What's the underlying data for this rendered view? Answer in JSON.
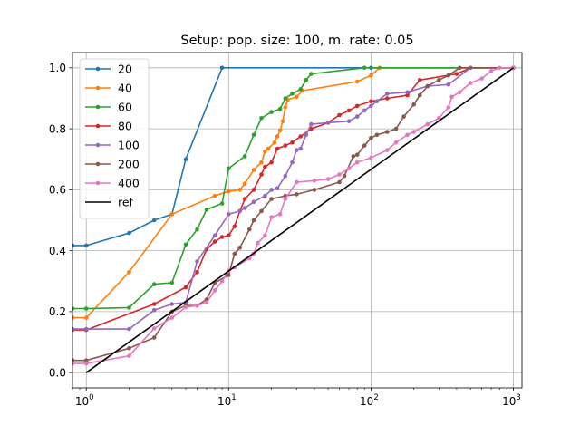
{
  "chart_data": {
    "type": "line",
    "title": "Setup: pop. size: 100, m. rate: 0.05",
    "xlabel": "",
    "ylabel": "",
    "xscale": "log",
    "xlim": [
      0.8,
      1150
    ],
    "ylim": [
      -0.05,
      1.05
    ],
    "grid": true,
    "legend_position": "upper-left",
    "x_ticks": [
      {
        "value": 1,
        "base": "10",
        "exp": "0"
      },
      {
        "value": 10,
        "base": "10",
        "exp": "1"
      },
      {
        "value": 100,
        "base": "10",
        "exp": "2"
      },
      {
        "value": 1000,
        "base": "10",
        "exp": "3"
      }
    ],
    "y_ticks": [
      {
        "value": 0.0,
        "label": "0.0"
      },
      {
        "value": 0.2,
        "label": "0.2"
      },
      {
        "value": 0.4,
        "label": "0.4"
      },
      {
        "value": 0.6,
        "label": "0.6"
      },
      {
        "value": 0.8,
        "label": "0.8"
      },
      {
        "value": 1.0,
        "label": "1.0"
      }
    ],
    "series": [
      {
        "name": "20",
        "color": "#1f77b4",
        "markers": true,
        "points": [
          [
            0.8,
            0.417
          ],
          [
            1,
            0.417
          ],
          [
            2,
            0.458
          ],
          [
            3,
            0.5
          ],
          [
            4,
            0.52
          ],
          [
            5,
            0.7
          ],
          [
            9,
            1.0
          ],
          [
            100,
            1.0
          ],
          [
            1000,
            1.0
          ]
        ]
      },
      {
        "name": "40",
        "color": "#ff7f0e",
        "markers": true,
        "points": [
          [
            0.8,
            0.18
          ],
          [
            1,
            0.18
          ],
          [
            2,
            0.33
          ],
          [
            4,
            0.52
          ],
          [
            8,
            0.58
          ],
          [
            10,
            0.595
          ],
          [
            12,
            0.6
          ],
          [
            13,
            0.62
          ],
          [
            15,
            0.665
          ],
          [
            17,
            0.69
          ],
          [
            18,
            0.725
          ],
          [
            19,
            0.735
          ],
          [
            21,
            0.755
          ],
          [
            22,
            0.775
          ],
          [
            23,
            0.795
          ],
          [
            24,
            0.825
          ],
          [
            25,
            0.87
          ],
          [
            26,
            0.895
          ],
          [
            30,
            0.905
          ],
          [
            33,
            0.925
          ],
          [
            80,
            0.955
          ],
          [
            100,
            0.975
          ],
          [
            115,
            1.0
          ],
          [
            1000,
            1.0
          ]
        ]
      },
      {
        "name": "60",
        "color": "#2ca02c",
        "markers": true,
        "points": [
          [
            0.8,
            0.21
          ],
          [
            1,
            0.21
          ],
          [
            2,
            0.213
          ],
          [
            3,
            0.29
          ],
          [
            4,
            0.295
          ],
          [
            5,
            0.42
          ],
          [
            6,
            0.47
          ],
          [
            7,
            0.535
          ],
          [
            9,
            0.555
          ],
          [
            10,
            0.67
          ],
          [
            13,
            0.71
          ],
          [
            15,
            0.78
          ],
          [
            17,
            0.835
          ],
          [
            20,
            0.855
          ],
          [
            23,
            0.865
          ],
          [
            25,
            0.9
          ],
          [
            28,
            0.915
          ],
          [
            32,
            0.93
          ],
          [
            35,
            0.96
          ],
          [
            38,
            0.98
          ],
          [
            90,
            1.0
          ],
          [
            1000,
            1.0
          ]
        ]
      },
      {
        "name": "80",
        "color": "#d62728",
        "markers": true,
        "points": [
          [
            0.8,
            0.14
          ],
          [
            1,
            0.14
          ],
          [
            3,
            0.225
          ],
          [
            5,
            0.28
          ],
          [
            6,
            0.33
          ],
          [
            7,
            0.405
          ],
          [
            8,
            0.43
          ],
          [
            9,
            0.445
          ],
          [
            10,
            0.45
          ],
          [
            11,
            0.48
          ],
          [
            12,
            0.53
          ],
          [
            13,
            0.57
          ],
          [
            15,
            0.6
          ],
          [
            17,
            0.65
          ],
          [
            18,
            0.675
          ],
          [
            20,
            0.69
          ],
          [
            22,
            0.735
          ],
          [
            25,
            0.745
          ],
          [
            28,
            0.755
          ],
          [
            32,
            0.775
          ],
          [
            38,
            0.8
          ],
          [
            50,
            0.82
          ],
          [
            60,
            0.845
          ],
          [
            70,
            0.86
          ],
          [
            80,
            0.875
          ],
          [
            100,
            0.89
          ],
          [
            130,
            0.9
          ],
          [
            180,
            0.91
          ],
          [
            220,
            0.96
          ],
          [
            400,
            0.98
          ],
          [
            500,
            1.0
          ],
          [
            1000,
            1.0
          ]
        ]
      },
      {
        "name": "100",
        "color": "#9467bd",
        "markers": true,
        "points": [
          [
            0.8,
            0.143
          ],
          [
            1,
            0.143
          ],
          [
            2,
            0.143
          ],
          [
            3,
            0.205
          ],
          [
            4,
            0.225
          ],
          [
            5,
            0.23
          ],
          [
            6,
            0.365
          ],
          [
            8,
            0.45
          ],
          [
            10,
            0.52
          ],
          [
            12,
            0.53
          ],
          [
            13,
            0.54
          ],
          [
            15,
            0.56
          ],
          [
            18,
            0.58
          ],
          [
            20,
            0.6
          ],
          [
            22,
            0.605
          ],
          [
            25,
            0.645
          ],
          [
            28,
            0.69
          ],
          [
            30,
            0.73
          ],
          [
            32,
            0.735
          ],
          [
            35,
            0.78
          ],
          [
            38,
            0.815
          ],
          [
            50,
            0.82
          ],
          [
            70,
            0.825
          ],
          [
            80,
            0.84
          ],
          [
            90,
            0.86
          ],
          [
            100,
            0.875
          ],
          [
            110,
            0.89
          ],
          [
            130,
            0.915
          ],
          [
            180,
            0.92
          ],
          [
            250,
            0.94
          ],
          [
            350,
            0.945
          ],
          [
            500,
            1.0
          ],
          [
            1000,
            1.0
          ]
        ]
      },
      {
        "name": "200",
        "color": "#8c564b",
        "markers": true,
        "points": [
          [
            0.8,
            0.04
          ],
          [
            1,
            0.04
          ],
          [
            2,
            0.08
          ],
          [
            3,
            0.115
          ],
          [
            4,
            0.2
          ],
          [
            5,
            0.22
          ],
          [
            6,
            0.22
          ],
          [
            7,
            0.24
          ],
          [
            8,
            0.295
          ],
          [
            10,
            0.32
          ],
          [
            11,
            0.39
          ],
          [
            12,
            0.41
          ],
          [
            14,
            0.47
          ],
          [
            15,
            0.5
          ],
          [
            17,
            0.53
          ],
          [
            20,
            0.57
          ],
          [
            25,
            0.58
          ],
          [
            30,
            0.585
          ],
          [
            40,
            0.6
          ],
          [
            60,
            0.625
          ],
          [
            65,
            0.645
          ],
          [
            75,
            0.71
          ],
          [
            80,
            0.715
          ],
          [
            90,
            0.745
          ],
          [
            100,
            0.77
          ],
          [
            110,
            0.78
          ],
          [
            130,
            0.79
          ],
          [
            150,
            0.8
          ],
          [
            170,
            0.84
          ],
          [
            200,
            0.88
          ],
          [
            220,
            0.91
          ],
          [
            250,
            0.94
          ],
          [
            300,
            0.96
          ],
          [
            350,
            0.975
          ],
          [
            420,
            1.0
          ],
          [
            1000,
            1.0
          ]
        ]
      },
      {
        "name": "400",
        "color": "#e377c2",
        "markers": true,
        "points": [
          [
            0.8,
            0.03
          ],
          [
            1,
            0.03
          ],
          [
            2,
            0.055
          ],
          [
            3,
            0.145
          ],
          [
            4,
            0.18
          ],
          [
            5,
            0.215
          ],
          [
            6,
            0.22
          ],
          [
            7,
            0.23
          ],
          [
            8,
            0.27
          ],
          [
            9,
            0.3
          ],
          [
            10,
            0.335
          ],
          [
            11,
            0.345
          ],
          [
            14,
            0.375
          ],
          [
            15,
            0.39
          ],
          [
            16,
            0.425
          ],
          [
            18,
            0.45
          ],
          [
            20,
            0.51
          ],
          [
            23,
            0.52
          ],
          [
            25,
            0.57
          ],
          [
            30,
            0.625
          ],
          [
            40,
            0.63
          ],
          [
            50,
            0.635
          ],
          [
            60,
            0.65
          ],
          [
            70,
            0.67
          ],
          [
            80,
            0.69
          ],
          [
            100,
            0.705
          ],
          [
            130,
            0.73
          ],
          [
            150,
            0.755
          ],
          [
            180,
            0.78
          ],
          [
            200,
            0.79
          ],
          [
            250,
            0.815
          ],
          [
            300,
            0.835
          ],
          [
            350,
            0.87
          ],
          [
            370,
            0.905
          ],
          [
            420,
            0.92
          ],
          [
            500,
            0.95
          ],
          [
            600,
            0.965
          ],
          [
            700,
            0.99
          ],
          [
            800,
            1.0
          ],
          [
            1000,
            1.0
          ]
        ]
      },
      {
        "name": "ref",
        "color": "#000000",
        "markers": false,
        "points": [
          [
            1,
            0
          ],
          [
            1000,
            1
          ]
        ]
      }
    ]
  }
}
